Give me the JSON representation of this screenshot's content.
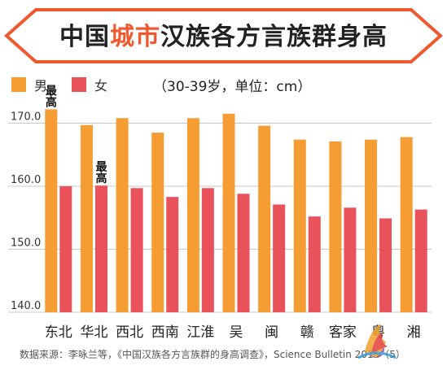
{
  "title": {
    "prefix": "中国",
    "highlight": "城市",
    "suffix": "汉族各方言族群身高"
  },
  "legend": {
    "male": "男",
    "female": "女",
    "unit_note": "（30-39岁，单位：cm）"
  },
  "source": "数据来源：李咏兰等，《中国汉族各方言族群的身高调查》，Science Bulletin 2015（5）",
  "colors": {
    "male": "#f59d32",
    "female": "#e9525b",
    "title_highlight": "#f0582f",
    "banner_border": "#f0582f",
    "grid": "#c8c8c8"
  },
  "annotations": [
    {
      "text": "最高",
      "category": "东北",
      "series": "男"
    },
    {
      "text": "最高",
      "category": "华北",
      "series": "女"
    }
  ],
  "chart_data": {
    "type": "bar",
    "title": "中国城市汉族各方言族群身高",
    "categories": [
      "东北",
      "华北",
      "西北",
      "西南",
      "江淮",
      "吴",
      "闽",
      "赣",
      "客家",
      "粤",
      "湘"
    ],
    "series": [
      {
        "name": "男",
        "values": [
          172.2,
          169.7,
          170.8,
          168.5,
          170.8,
          171.5,
          169.6,
          167.4,
          167.1,
          167.4,
          167.8
        ]
      },
      {
        "name": "女",
        "values": [
          160.0,
          160.1,
          159.7,
          158.3,
          159.7,
          158.8,
          157.1,
          155.2,
          156.6,
          154.9,
          156.3
        ]
      }
    ],
    "yticks": [
      140.0,
      150.0,
      160.0,
      170.0
    ],
    "ylim": [
      140,
      174
    ],
    "grid": true,
    "legend_position": "top-left"
  }
}
